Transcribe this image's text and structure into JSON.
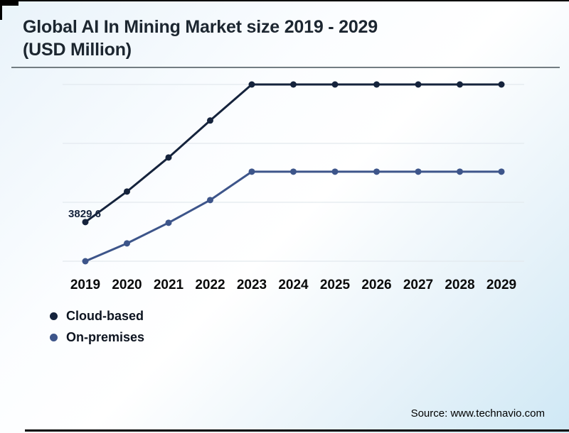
{
  "title": {
    "line1": "Global AI In Mining Market size 2019 - 2029",
    "line2": "(USD Million)"
  },
  "source_text": "Source: www.technavio.com",
  "legend": [
    {
      "label": "Cloud-based",
      "color": "#15233c"
    },
    {
      "label": "On-premises",
      "color": "#3d558a"
    }
  ],
  "colors": {
    "accent_dark": "#15233c",
    "accent_slate": "#3d558a",
    "gridline": "#e3e9ee",
    "title_text": "#1c2630",
    "axis_text": "#0a0a0a",
    "divider": "#737d82"
  },
  "chart_data": {
    "type": "line",
    "title": "Global AI In Mining Market size 2019 - 2029 (USD Million)",
    "x": [
      2019,
      2020,
      2021,
      2022,
      2023,
      2024,
      2025,
      2026,
      2027,
      2028,
      2029
    ],
    "series": [
      {
        "name": "Cloud-based",
        "color": "#15233c",
        "point_label": "3829.6",
        "values": [
          3829.6,
          4865,
          6022,
          7276,
          8500,
          8500,
          8500,
          8500,
          8500,
          8500,
          8500
        ]
      },
      {
        "name": "On-premises",
        "color": "#3d558a",
        "values": [
          2500,
          3106,
          3805,
          4576,
          5540,
          5540,
          5540,
          5540,
          5540,
          5540,
          5540
        ]
      }
    ],
    "ylim": [
      2000,
      9000
    ],
    "gridline_values": [
      2500,
      4500,
      6500,
      8500
    ],
    "grid": "horizontal",
    "legend_position": "bottom-left",
    "xlabel": "",
    "ylabel": "USD Million",
    "y_axis_labels_visible": false,
    "annotations": [
      {
        "text": "3829.6",
        "series": "Cloud-based",
        "x": 2019
      }
    ]
  }
}
